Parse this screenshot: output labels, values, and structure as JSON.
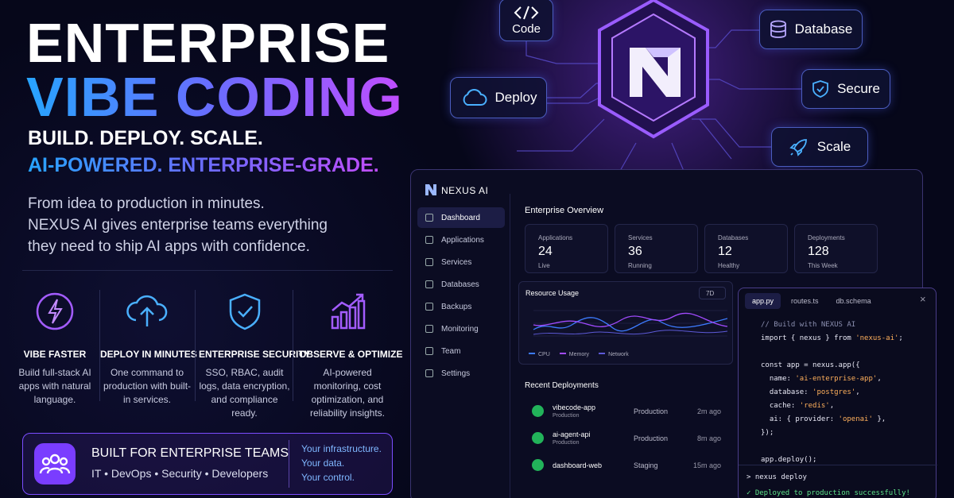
{
  "hero": {
    "title_line1": "ENTERPRISE",
    "title_line2": "VIBE CODING",
    "tagline1": "BUILD. DEPLOY. SCALE.",
    "tagline2": "AI-POWERED. ENTERPRISE-GRADE.",
    "description": [
      "From idea to production in minutes.",
      "NEXUS AI gives enterprise teams everything",
      "they need to ship AI apps with confidence."
    ]
  },
  "features": [
    {
      "title": "VIBE FASTER",
      "text": "Build full-stack AI apps with natural language."
    },
    {
      "title": "DEPLOY IN MINUTES",
      "text": "One command to production with built-in services."
    },
    {
      "title": "ENTERPRISE SECURITY",
      "text": "SSO, RBAC, audit logs, data encryption, and compliance ready."
    },
    {
      "title": "OBSERVE & OPTIMIZE",
      "text": "AI-powered monitoring, cost optimization, and reliability insights."
    }
  ],
  "banner": {
    "title": "BUILT FOR ENTERPRISE TEAMS",
    "subtitle": "IT • DevOps • Security • Developers",
    "lines": [
      "Your infrastructure.",
      "Your data.",
      "Your control."
    ]
  },
  "nodes": {
    "code": "Code",
    "database": "Database",
    "deploy": "Deploy",
    "secure": "Secure",
    "scale": "Scale"
  },
  "app": {
    "brand": "NEXUS AI",
    "nav": [
      "Dashboard",
      "Applications",
      "Services",
      "Databases",
      "Backups",
      "Monitoring",
      "Team",
      "Settings"
    ],
    "overview_title": "Enterprise Overview",
    "stats": [
      {
        "label": "Applications",
        "value": "24",
        "sub": "Live"
      },
      {
        "label": "Services",
        "value": "36",
        "sub": "Running"
      },
      {
        "label": "Databases",
        "value": "12",
        "sub": "Healthy"
      },
      {
        "label": "Deployments",
        "value": "128",
        "sub": "This Week"
      }
    ],
    "resource_title": "Resource Usage",
    "range": "7D",
    "legend": [
      "CPU",
      "Memory",
      "Network"
    ],
    "deployments_title": "Recent Deployments",
    "deployments": [
      {
        "name": "vibecode-app",
        "sub": "Production",
        "env": "Production",
        "time": "2m ago"
      },
      {
        "name": "ai-agent-api",
        "sub": "Production",
        "env": "Production",
        "time": "8m ago"
      },
      {
        "name": "dashboard-web",
        "sub": null,
        "env": "Staging",
        "time": "15m ago"
      }
    ]
  },
  "editor": {
    "tabs": [
      "app.py",
      "routes.ts",
      "db.schema"
    ],
    "code": [
      "// Build with NEXUS AI",
      "import { nexus } from 'nexus-ai';",
      "",
      "const app = nexus.app({",
      "  name: 'ai-enterprise-app',",
      "  database: 'postgres',",
      "  cache: 'redis',",
      "  ai: { provider: 'openai' },",
      "});",
      "",
      "app.deploy();"
    ],
    "command": "> nexus deploy",
    "result": "✓ Deployed to production successfully!"
  }
}
